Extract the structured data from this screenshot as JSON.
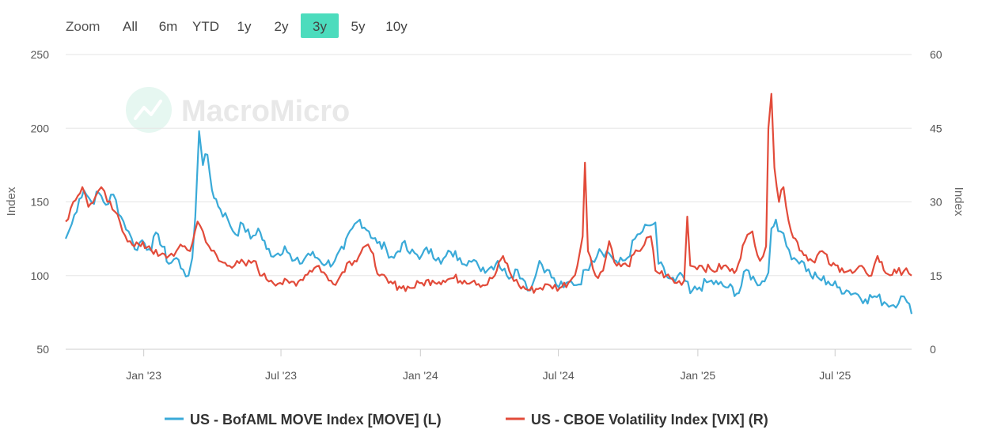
{
  "zoom": {
    "label": "Zoom",
    "buttons": [
      "All",
      "6m",
      "YTD",
      "1y",
      "2y",
      "3y",
      "5y",
      "10y"
    ],
    "active": "3y",
    "active_color": "#4cdcbd"
  },
  "watermark": "MacroMicro",
  "chart_data": {
    "type": "line",
    "title": "",
    "xlabel": "",
    "x_range": [
      "2022-09-20",
      "2025-10-10"
    ],
    "x_ticks": [
      "Jan '23",
      "Jul '23",
      "Jan '24",
      "Jul '24",
      "Jan '25",
      "Jul '25"
    ],
    "x_tick_dates": [
      "2023-01-01",
      "2023-07-01",
      "2024-01-01",
      "2024-07-01",
      "2025-01-01",
      "2025-07-01"
    ],
    "y_left": {
      "label": "Index",
      "range": [
        50,
        250
      ],
      "ticks": [
        50,
        100,
        150,
        200,
        250
      ]
    },
    "y_right": {
      "label": "Index",
      "range": [
        0,
        60
      ],
      "ticks": [
        0,
        15,
        30,
        45,
        60
      ]
    },
    "grid": true,
    "series": [
      {
        "name": "US - BofAML MOVE Index [MOVE] (L)",
        "axis": "left",
        "color": "#3aaad8",
        "data": [
          [
            "2022-09-20",
            125
          ],
          [
            "2022-09-28",
            135
          ],
          [
            "2022-10-08",
            152
          ],
          [
            "2022-10-14",
            158
          ],
          [
            "2022-10-24",
            150
          ],
          [
            "2022-11-03",
            156
          ],
          [
            "2022-11-12",
            148
          ],
          [
            "2022-11-22",
            155
          ],
          [
            "2022-12-02",
            140
          ],
          [
            "2022-12-12",
            130
          ],
          [
            "2022-12-20",
            118
          ],
          [
            "2022-12-30",
            124
          ],
          [
            "2023-01-08",
            118
          ],
          [
            "2023-01-20",
            128
          ],
          [
            "2023-02-03",
            108
          ],
          [
            "2023-02-13",
            112
          ],
          [
            "2023-02-22",
            104
          ],
          [
            "2023-03-01",
            100
          ],
          [
            "2023-03-06",
            112
          ],
          [
            "2023-03-10",
            140
          ],
          [
            "2023-03-15",
            198
          ],
          [
            "2023-03-20",
            175
          ],
          [
            "2023-03-26",
            182
          ],
          [
            "2023-04-01",
            158
          ],
          [
            "2023-04-12",
            145
          ],
          [
            "2023-04-22",
            138
          ],
          [
            "2023-05-02",
            128
          ],
          [
            "2023-05-12",
            135
          ],
          [
            "2023-05-22",
            125
          ],
          [
            "2023-06-01",
            132
          ],
          [
            "2023-06-12",
            118
          ],
          [
            "2023-06-24",
            114
          ],
          [
            "2023-07-06",
            120
          ],
          [
            "2023-07-16",
            110
          ],
          [
            "2023-07-26",
            108
          ],
          [
            "2023-08-06",
            115
          ],
          [
            "2023-08-18",
            112
          ],
          [
            "2023-08-30",
            108
          ],
          [
            "2023-09-10",
            110
          ],
          [
            "2023-09-22",
            118
          ],
          [
            "2023-10-03",
            132
          ],
          [
            "2023-10-13",
            138
          ],
          [
            "2023-10-25",
            130
          ],
          [
            "2023-11-05",
            122
          ],
          [
            "2023-11-17",
            118
          ],
          [
            "2023-11-27",
            112
          ],
          [
            "2023-12-08",
            122
          ],
          [
            "2023-12-18",
            115
          ],
          [
            "2024-01-03",
            114
          ],
          [
            "2024-01-15",
            118
          ],
          [
            "2024-01-28",
            108
          ],
          [
            "2024-02-10",
            116
          ],
          [
            "2024-02-22",
            112
          ],
          [
            "2024-03-05",
            110
          ],
          [
            "2024-03-18",
            106
          ],
          [
            "2024-04-01",
            105
          ],
          [
            "2024-04-12",
            110
          ],
          [
            "2024-04-24",
            100
          ],
          [
            "2024-05-08",
            104
          ],
          [
            "2024-05-18",
            96
          ],
          [
            "2024-05-25",
            90
          ],
          [
            "2024-06-01",
            100
          ],
          [
            "2024-06-06",
            110
          ],
          [
            "2024-06-16",
            104
          ],
          [
            "2024-06-28",
            94
          ],
          [
            "2024-07-08",
            92
          ],
          [
            "2024-07-18",
            96
          ],
          [
            "2024-07-28",
            94
          ],
          [
            "2024-08-06",
            104
          ],
          [
            "2024-08-14",
            110
          ],
          [
            "2024-08-24",
            118
          ],
          [
            "2024-09-06",
            115
          ],
          [
            "2024-09-18",
            108
          ],
          [
            "2024-09-30",
            112
          ],
          [
            "2024-10-10",
            125
          ],
          [
            "2024-10-20",
            130
          ],
          [
            "2024-10-30",
            134
          ],
          [
            "2024-11-06",
            136
          ],
          [
            "2024-11-10",
            108
          ],
          [
            "2024-11-20",
            100
          ],
          [
            "2024-12-02",
            96
          ],
          [
            "2024-12-12",
            100
          ],
          [
            "2024-12-22",
            88
          ],
          [
            "2025-01-03",
            92
          ],
          [
            "2025-01-16",
            96
          ],
          [
            "2025-01-28",
            94
          ],
          [
            "2025-02-10",
            92
          ],
          [
            "2025-02-24",
            88
          ],
          [
            "2025-03-06",
            104
          ],
          [
            "2025-03-18",
            96
          ],
          [
            "2025-03-30",
            96
          ],
          [
            "2025-04-04",
            102
          ],
          [
            "2025-04-08",
            132
          ],
          [
            "2025-04-14",
            138
          ],
          [
            "2025-04-20",
            130
          ],
          [
            "2025-04-28",
            120
          ],
          [
            "2025-05-08",
            112
          ],
          [
            "2025-05-18",
            110
          ],
          [
            "2025-05-30",
            100
          ],
          [
            "2025-06-10",
            98
          ],
          [
            "2025-06-22",
            96
          ],
          [
            "2025-07-04",
            92
          ],
          [
            "2025-07-16",
            90
          ],
          [
            "2025-07-28",
            88
          ],
          [
            "2025-08-10",
            84
          ],
          [
            "2025-08-22",
            86
          ],
          [
            "2025-09-04",
            82
          ],
          [
            "2025-09-16",
            80
          ],
          [
            "2025-09-26",
            86
          ],
          [
            "2025-10-04",
            82
          ],
          [
            "2025-10-10",
            74
          ]
        ]
      },
      {
        "name": "US - CBOE Volatility Index [VIX] (R)",
        "axis": "right",
        "color": "#e24b3a",
        "data": [
          [
            "2022-09-20",
            26
          ],
          [
            "2022-09-30",
            30
          ],
          [
            "2022-10-12",
            33
          ],
          [
            "2022-10-20",
            29
          ],
          [
            "2022-10-29",
            31
          ],
          [
            "2022-11-06",
            33
          ],
          [
            "2022-11-14",
            30
          ],
          [
            "2022-11-24",
            28
          ],
          [
            "2022-12-04",
            24
          ],
          [
            "2022-12-14",
            22
          ],
          [
            "2022-12-28",
            21
          ],
          [
            "2023-01-08",
            21
          ],
          [
            "2023-01-20",
            19
          ],
          [
            "2023-02-03",
            19
          ],
          [
            "2023-02-13",
            20
          ],
          [
            "2023-02-24",
            21
          ],
          [
            "2023-03-03",
            20
          ],
          [
            "2023-03-13",
            26
          ],
          [
            "2023-03-20",
            24
          ],
          [
            "2023-03-28",
            21
          ],
          [
            "2023-04-10",
            18
          ],
          [
            "2023-04-24",
            17
          ],
          [
            "2023-05-04",
            18
          ],
          [
            "2023-05-16",
            17
          ],
          [
            "2023-05-26",
            18
          ],
          [
            "2023-06-06",
            15
          ],
          [
            "2023-06-18",
            14
          ],
          [
            "2023-06-30",
            13.5
          ],
          [
            "2023-07-12",
            13.5
          ],
          [
            "2023-07-24",
            13.8
          ],
          [
            "2023-08-08",
            16
          ],
          [
            "2023-08-20",
            17
          ],
          [
            "2023-09-02",
            14
          ],
          [
            "2023-09-14",
            14
          ],
          [
            "2023-09-26",
            17.5
          ],
          [
            "2023-10-06",
            18
          ],
          [
            "2023-10-20",
            21
          ],
          [
            "2023-10-28",
            20
          ],
          [
            "2023-11-08",
            15
          ],
          [
            "2023-11-20",
            13.5
          ],
          [
            "2023-12-04",
            12.8
          ],
          [
            "2023-12-18",
            12.5
          ],
          [
            "2024-01-03",
            13.5
          ],
          [
            "2024-01-17",
            14
          ],
          [
            "2024-01-31",
            14
          ],
          [
            "2024-02-14",
            14.5
          ],
          [
            "2024-02-28",
            14
          ],
          [
            "2024-03-12",
            14
          ],
          [
            "2024-03-26",
            13
          ],
          [
            "2024-04-08",
            15
          ],
          [
            "2024-04-19",
            19
          ],
          [
            "2024-04-30",
            15
          ],
          [
            "2024-05-10",
            13
          ],
          [
            "2024-05-24",
            12
          ],
          [
            "2024-06-07",
            12.5
          ],
          [
            "2024-06-20",
            13
          ],
          [
            "2024-07-03",
            12.5
          ],
          [
            "2024-07-17",
            14
          ],
          [
            "2024-07-26",
            17
          ],
          [
            "2024-08-02",
            23
          ],
          [
            "2024-08-05",
            38
          ],
          [
            "2024-08-09",
            20
          ],
          [
            "2024-08-19",
            15
          ],
          [
            "2024-08-29",
            16
          ],
          [
            "2024-09-06",
            22
          ],
          [
            "2024-09-16",
            17
          ],
          [
            "2024-09-30",
            17
          ],
          [
            "2024-10-14",
            20
          ],
          [
            "2024-10-31",
            23
          ],
          [
            "2024-11-06",
            16
          ],
          [
            "2024-11-20",
            15
          ],
          [
            "2024-12-04",
            13.5
          ],
          [
            "2024-12-14",
            14
          ],
          [
            "2024-12-18",
            27
          ],
          [
            "2024-12-22",
            17
          ],
          [
            "2025-01-06",
            17
          ],
          [
            "2025-01-20",
            16
          ],
          [
            "2025-02-04",
            17
          ],
          [
            "2025-02-18",
            15.5
          ],
          [
            "2025-03-04",
            22
          ],
          [
            "2025-03-14",
            24
          ],
          [
            "2025-03-24",
            18
          ],
          [
            "2025-04-01",
            21
          ],
          [
            "2025-04-04",
            45
          ],
          [
            "2025-04-08",
            52
          ],
          [
            "2025-04-12",
            37
          ],
          [
            "2025-04-18",
            30
          ],
          [
            "2025-04-24",
            33
          ],
          [
            "2025-05-04",
            24
          ],
          [
            "2025-05-18",
            20
          ],
          [
            "2025-06-01",
            18
          ],
          [
            "2025-06-14",
            20
          ],
          [
            "2025-06-26",
            17
          ],
          [
            "2025-07-10",
            16.5
          ],
          [
            "2025-07-24",
            15.5
          ],
          [
            "2025-08-08",
            16.5
          ],
          [
            "2025-08-18",
            15
          ],
          [
            "2025-08-26",
            19
          ],
          [
            "2025-09-06",
            15.5
          ],
          [
            "2025-09-20",
            15.5
          ],
          [
            "2025-10-03",
            16.5
          ],
          [
            "2025-10-10",
            15
          ]
        ]
      }
    ]
  }
}
